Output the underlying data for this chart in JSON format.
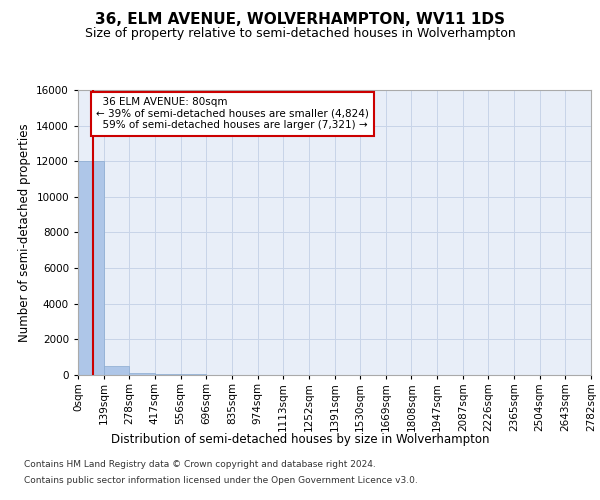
{
  "title": "36, ELM AVENUE, WOLVERHAMPTON, WV11 1DS",
  "subtitle": "Size of property relative to semi-detached houses in Wolverhampton",
  "xlabel": "Distribution of semi-detached houses by size in Wolverhampton",
  "ylabel": "Number of semi-detached properties",
  "footnote1": "Contains HM Land Registry data © Crown copyright and database right 2024.",
  "footnote2": "Contains public sector information licensed under the Open Government Licence v3.0.",
  "property_size": 80,
  "property_label": "36 ELM AVENUE: 80sqm",
  "pct_smaller": 39,
  "n_smaller": 4824,
  "pct_larger": 59,
  "n_larger": 7321,
  "bin_width": 139,
  "bin_edges": [
    0,
    139,
    278,
    417,
    556,
    696,
    835,
    974,
    1113,
    1252,
    1391,
    1530,
    1669,
    1808,
    1947,
    2087,
    2226,
    2365,
    2504,
    2643,
    2782
  ],
  "bar_heights": [
    12000,
    500,
    120,
    60,
    30,
    15,
    8,
    5,
    3,
    2,
    1,
    1,
    0,
    0,
    0,
    0,
    0,
    0,
    0,
    0
  ],
  "bar_color": "#aec6e8",
  "bar_edge_color": "#aec6e8",
  "grid_color": "#c8d4e8",
  "background_color": "#e8eef8",
  "axes_background": "#e8eef8",
  "vline_color": "#cc0000",
  "vline_x": 80,
  "ylim": [
    0,
    16000
  ],
  "yticks": [
    0,
    2000,
    4000,
    6000,
    8000,
    10000,
    12000,
    14000,
    16000
  ],
  "annotation_box_color": "#cc0000",
  "title_fontsize": 11,
  "subtitle_fontsize": 9,
  "tick_fontsize": 7.5,
  "ylabel_fontsize": 8.5,
  "xlabel_fontsize": 8.5,
  "footnote_fontsize": 6.5
}
